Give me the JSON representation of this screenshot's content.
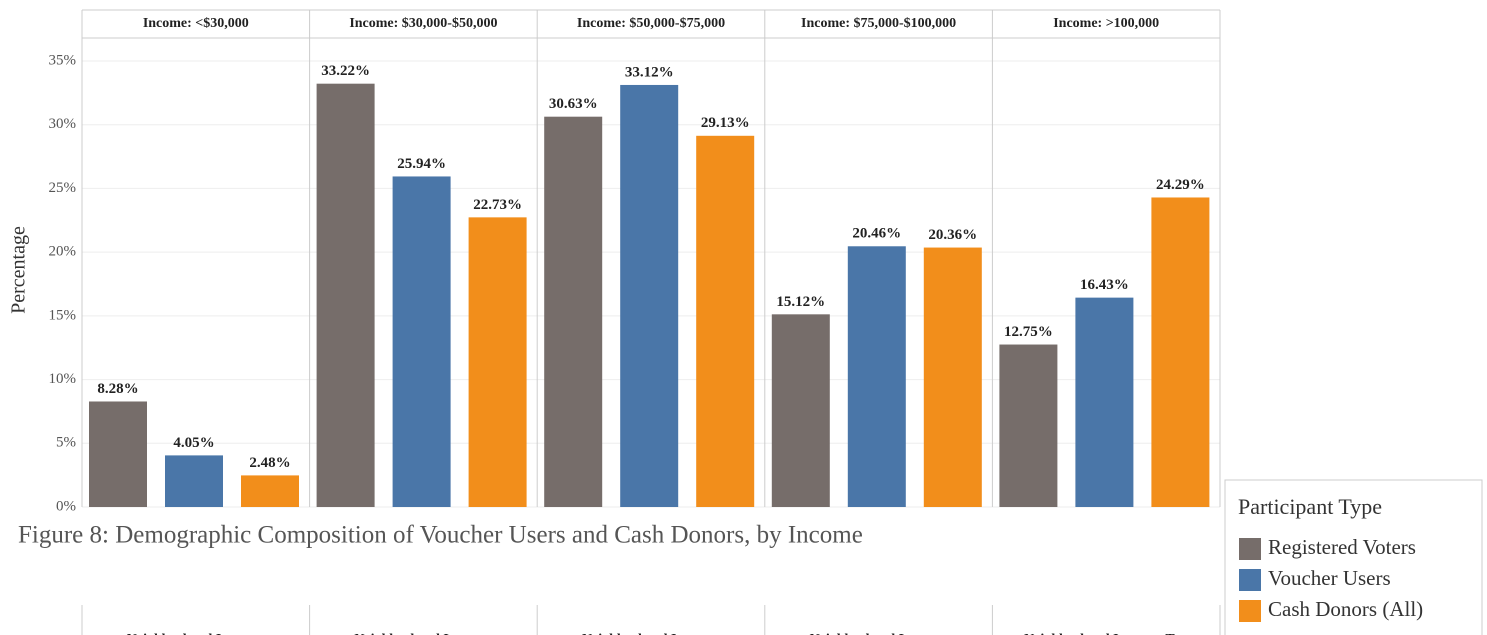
{
  "chart_data": {
    "type": "bar",
    "y_label": "Percentage",
    "categories": [
      "Income: <$30,000",
      "Income: $30,000-$50,000",
      "Income: $50,000-$75,000",
      "Income: $75,000-$100,000",
      "Income: >100,000"
    ],
    "series": [
      {
        "name": "Registered Voters",
        "color": "#766d6a",
        "values": [
          8.28,
          33.22,
          30.63,
          15.12,
          12.75
        ],
        "value_labels": [
          "8.28%",
          "33.22%",
          "30.63%",
          "15.12%",
          "12.75%"
        ]
      },
      {
        "name": "Voucher Users",
        "color": "#4a76a8",
        "values": [
          4.05,
          25.94,
          33.12,
          20.46,
          16.43
        ],
        "value_labels": [
          "4.05%",
          "25.94%",
          "33.12%",
          "20.46%",
          "16.43%"
        ]
      },
      {
        "name": "Cash Donors (All)",
        "color": "#f28e1b",
        "values": [
          2.48,
          22.73,
          29.13,
          20.36,
          24.29
        ],
        "value_labels": [
          "2.48%",
          "22.73%",
          "29.13%",
          "20.36%",
          "24.29%"
        ]
      }
    ],
    "ylim": [
      0,
      35
    ],
    "yticks": [
      {
        "value": 0,
        "label": "0%"
      },
      {
        "value": 5,
        "label": "5%"
      },
      {
        "value": 10,
        "label": "10%"
      },
      {
        "value": 15,
        "label": "15%"
      },
      {
        "value": 20,
        "label": "20%"
      },
      {
        "value": 25,
        "label": "25%"
      },
      {
        "value": 30,
        "label": "30%"
      },
      {
        "value": 35,
        "label": "35%"
      }
    ],
    "grid": true,
    "legend_title": "Participant Type",
    "legend_position": "right"
  },
  "caption": "Figure 8: Demographic Composition of Voucher Users and Cash Donors, by Income",
  "next_figure_headers": [
    "Neighborhood Income:",
    "Neighborhood Income:",
    "Neighborhood Income:",
    "Neighborhood Income:",
    "Neighborhood Income: Top"
  ]
}
